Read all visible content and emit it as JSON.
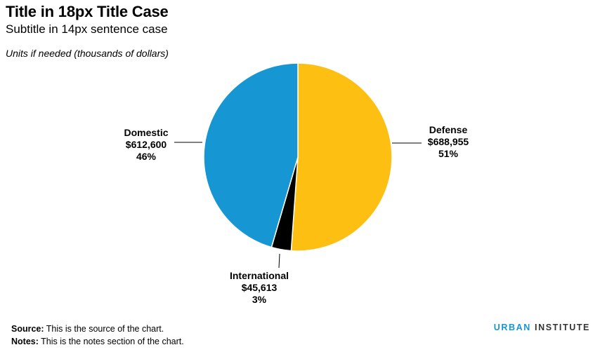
{
  "header": {
    "title": "Title in 18px Title Case",
    "subtitle": "Subtitle in 14px sentence case",
    "units": "Units if needed (thousands of dollars)"
  },
  "footer": {
    "source_label": "Source:",
    "source_text": "This is the source of the chart.",
    "notes_label": "Notes:",
    "notes_text": "This is the notes section of the chart.",
    "logo_word1": "URBAN",
    "logo_word2": "INSTITUTE",
    "logo_color": "#1696d2"
  },
  "chart_data": {
    "type": "pie",
    "slices": [
      {
        "name": "Defense",
        "value": 688955,
        "value_label": "$688,955",
        "percent_label": "51%",
        "color": "#fdbf11"
      },
      {
        "name": "International",
        "value": 45613,
        "value_label": "$45,613",
        "percent_label": "3%",
        "color": "#000000"
      },
      {
        "name": "Domestic",
        "value": 612600,
        "value_label": "$612,600",
        "percent_label": "46%",
        "color": "#1696d2"
      }
    ]
  }
}
